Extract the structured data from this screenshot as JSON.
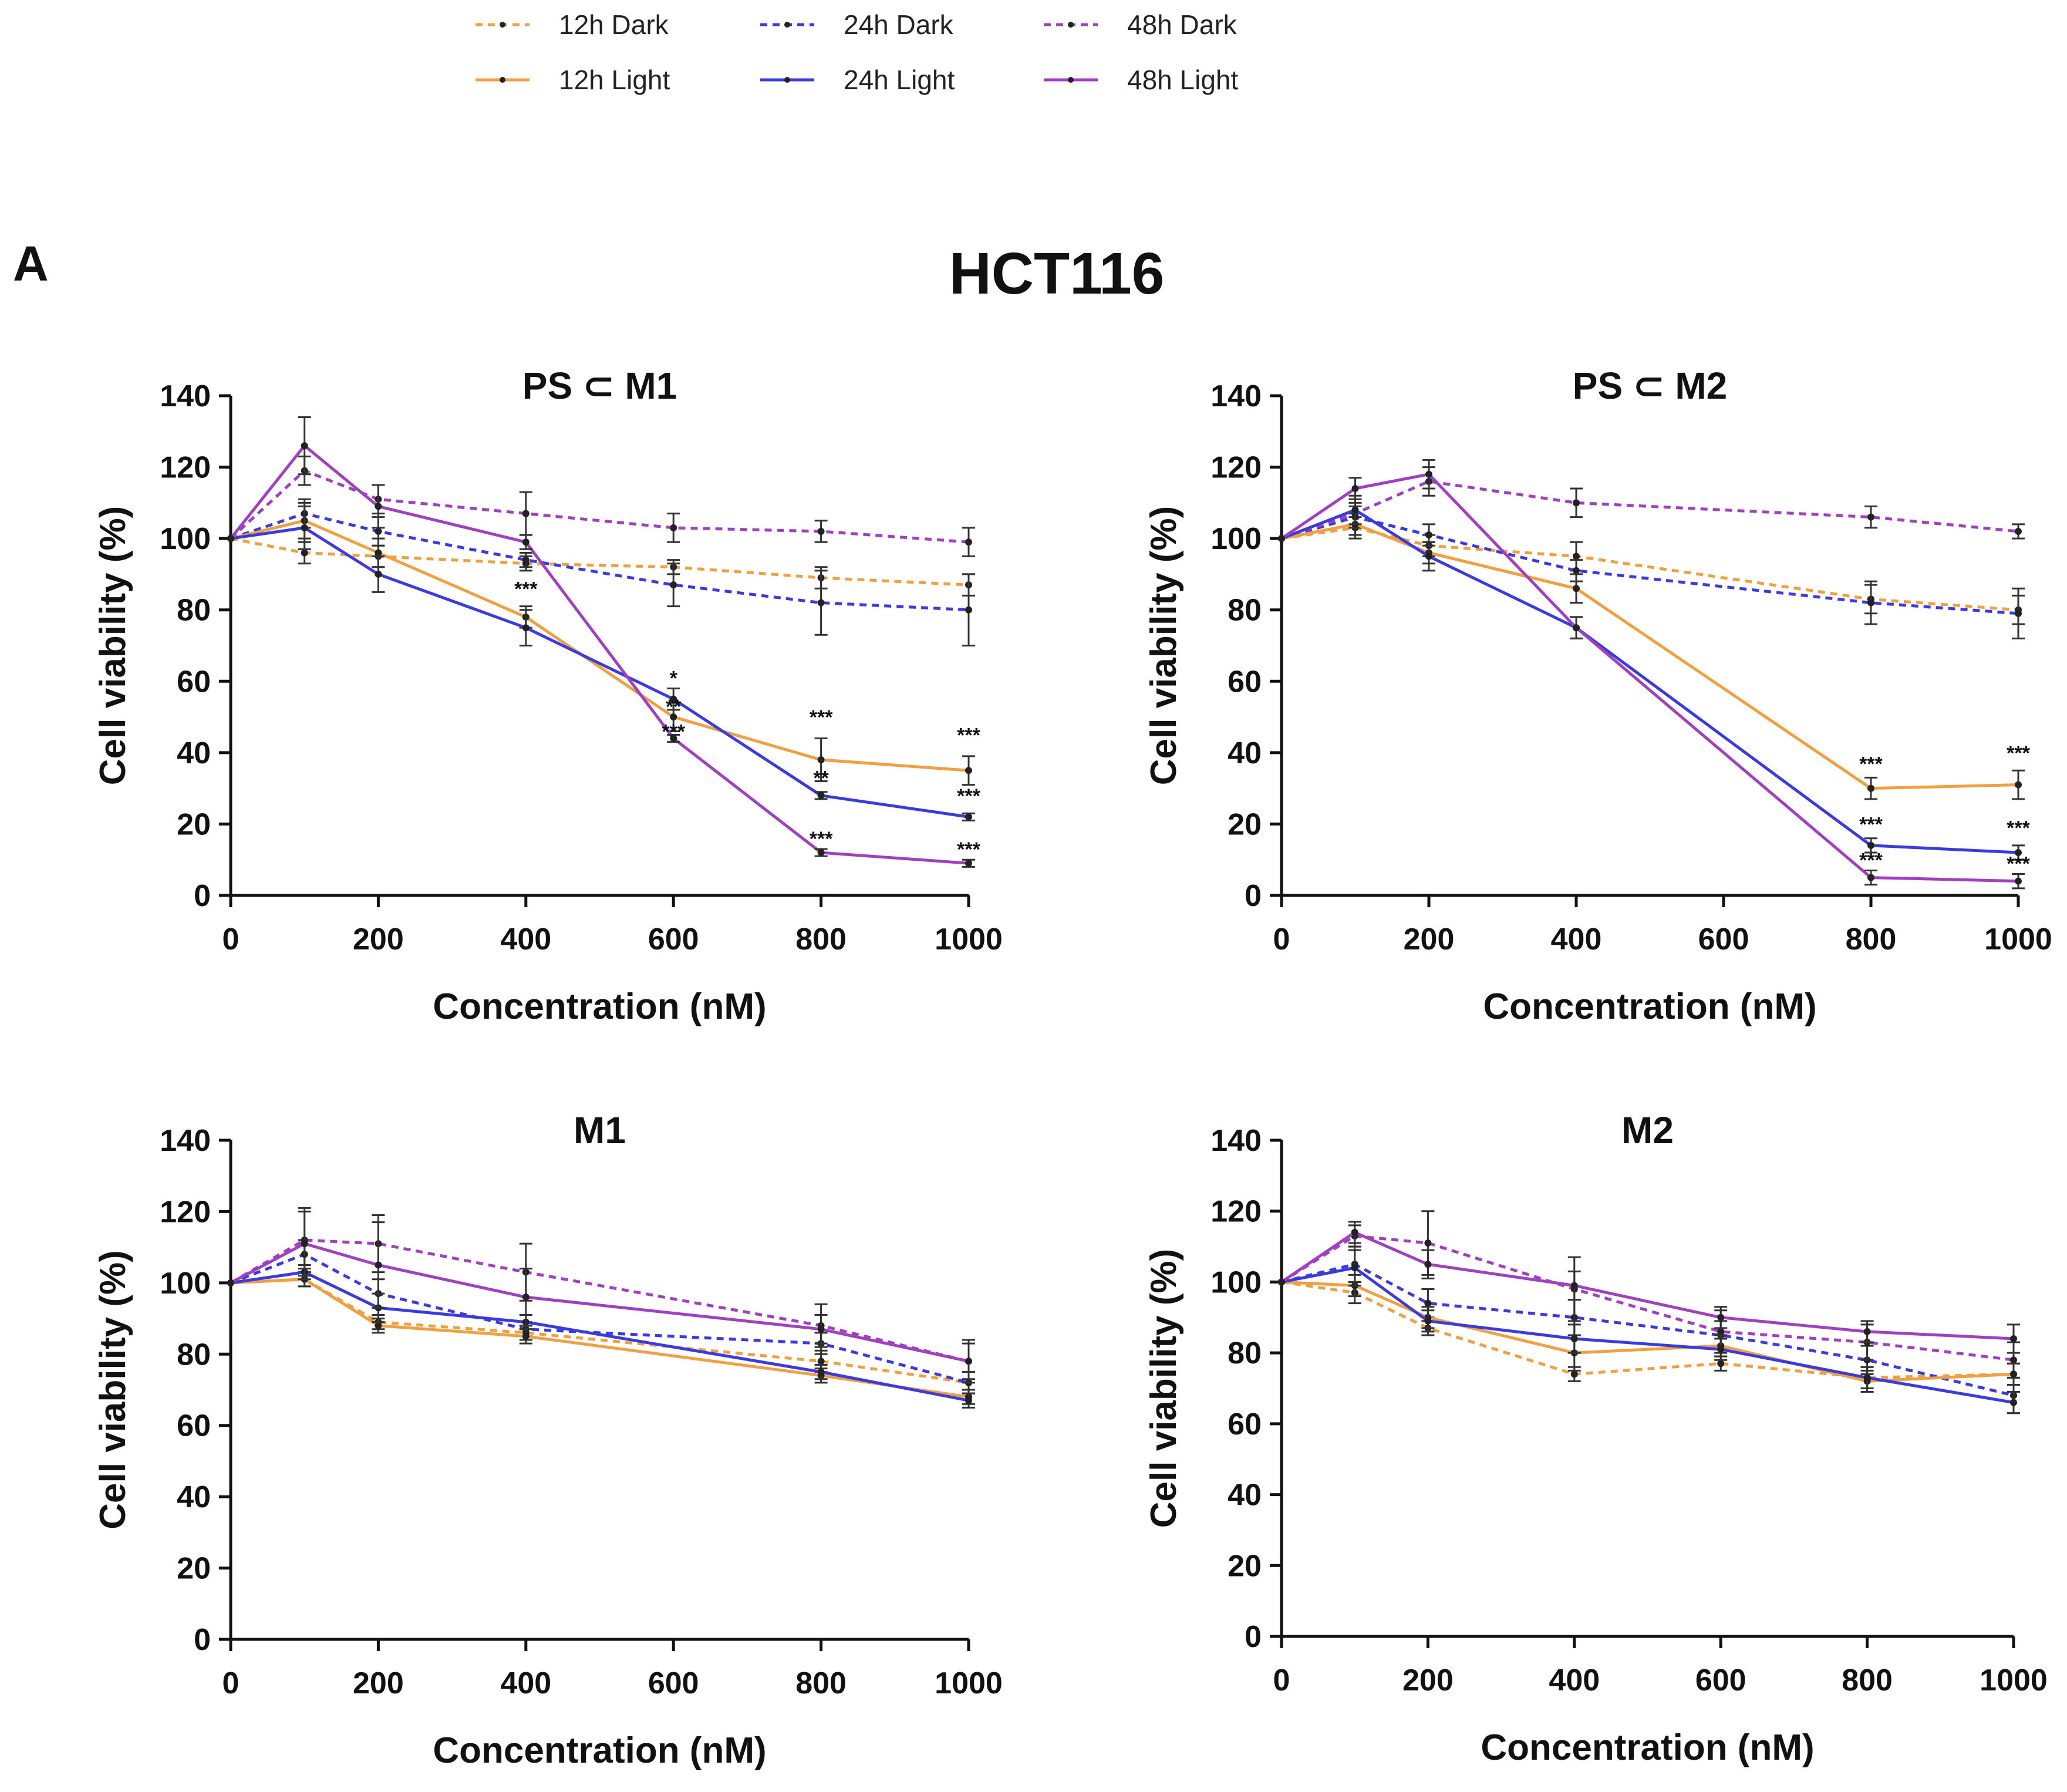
{
  "figure": {
    "panel_label": "A",
    "title": "HCT116"
  },
  "legend": [
    {
      "name": "12h Dark",
      "color": "#f0a040",
      "style": "dashed"
    },
    {
      "name": "24h Dark",
      "color": "#3a3ae0",
      "style": "dashed"
    },
    {
      "name": "48h Dark",
      "color": "#a040c0",
      "style": "dashed"
    },
    {
      "name": "12h Light",
      "color": "#f0a040",
      "style": "solid"
    },
    {
      "name": "24h Light",
      "color": "#3a3ae0",
      "style": "solid"
    },
    {
      "name": "48h Light",
      "color": "#a040c0",
      "style": "solid"
    }
  ],
  "chart_data": [
    {
      "type": "line",
      "title": "PS ⊂ M1",
      "xlabel": "Concentration (nM)",
      "ylabel": "Cell viability (%)",
      "xlim": [
        0,
        1000
      ],
      "ylim": [
        0,
        140
      ],
      "xticks": [
        0,
        200,
        400,
        600,
        800,
        1000
      ],
      "yticks": [
        0,
        20,
        40,
        60,
        80,
        100,
        120,
        140
      ],
      "x": [
        0,
        100,
        200,
        400,
        600,
        800,
        1000
      ],
      "series": [
        {
          "name": "12h Dark",
          "values": [
            100,
            96,
            95,
            93,
            92,
            89,
            87
          ],
          "err": [
            0,
            3,
            3,
            2,
            2,
            3,
            3
          ]
        },
        {
          "name": "24h Dark",
          "values": [
            100,
            107,
            102,
            94,
            87,
            82,
            80
          ],
          "err": [
            0,
            4,
            4,
            2,
            6,
            9,
            10
          ]
        },
        {
          "name": "48h Dark",
          "values": [
            100,
            119,
            111,
            107,
            103,
            102,
            99
          ],
          "err": [
            0,
            4,
            4,
            6,
            4,
            3,
            4
          ]
        },
        {
          "name": "12h Light",
          "values": [
            100,
            105,
            96,
            78,
            50,
            38,
            35
          ],
          "err": [
            0,
            5,
            4,
            3,
            4,
            6,
            4
          ]
        },
        {
          "name": "24h Light",
          "values": [
            100,
            103,
            90,
            75,
            55,
            28,
            22
          ],
          "err": [
            0,
            6,
            5,
            5,
            3,
            1,
            1
          ]
        },
        {
          "name": "48h Light",
          "values": [
            100,
            126,
            109,
            99,
            44,
            12,
            9
          ],
          "err": [
            0,
            8,
            6,
            2,
            1,
            1,
            1
          ]
        }
      ],
      "annotations": [
        {
          "x": 400,
          "y": 84,
          "text": "***"
        },
        {
          "x": 600,
          "y": 59,
          "text": "*"
        },
        {
          "x": 600,
          "y": 51,
          "text": "**"
        },
        {
          "x": 600,
          "y": 44,
          "text": "***"
        },
        {
          "x": 800,
          "y": 48,
          "text": "***"
        },
        {
          "x": 800,
          "y": 31,
          "text": "**"
        },
        {
          "x": 800,
          "y": 14,
          "text": "***"
        },
        {
          "x": 1000,
          "y": 43,
          "text": "***"
        },
        {
          "x": 1000,
          "y": 26,
          "text": "***"
        },
        {
          "x": 1000,
          "y": 11,
          "text": "***"
        }
      ]
    },
    {
      "type": "line",
      "title": "PS ⊂ M2",
      "xlabel": "Concentration (nM)",
      "ylabel": "Cell viability (%)",
      "xlim": [
        0,
        1000
      ],
      "ylim": [
        0,
        140
      ],
      "xticks": [
        0,
        200,
        400,
        600,
        800,
        1000
      ],
      "yticks": [
        0,
        20,
        40,
        60,
        80,
        100,
        120,
        140
      ],
      "x": [
        0,
        100,
        200,
        400,
        800,
        1000
      ],
      "series": [
        {
          "name": "12h Dark",
          "values": [
            100,
            103,
            98,
            95,
            83,
            80
          ],
          "err": [
            0,
            3,
            3,
            4,
            4,
            4
          ]
        },
        {
          "name": "24h Dark",
          "values": [
            100,
            106,
            101,
            91,
            82,
            79
          ],
          "err": [
            0,
            3,
            3,
            3,
            6,
            7
          ]
        },
        {
          "name": "48h Dark",
          "values": [
            100,
            107,
            116,
            110,
            106,
            102
          ],
          "err": [
            0,
            3,
            4,
            4,
            3,
            2
          ]
        },
        {
          "name": "12h Light",
          "values": [
            100,
            104,
            96,
            86,
            30,
            31
          ],
          "err": [
            0,
            3,
            3,
            4,
            3,
            4
          ]
        },
        {
          "name": "24h Light",
          "values": [
            100,
            108,
            95,
            75,
            14,
            12
          ],
          "err": [
            0,
            4,
            4,
            3,
            2,
            2
          ]
        },
        {
          "name": "48h Light",
          "values": [
            100,
            114,
            118,
            75,
            5,
            4
          ],
          "err": [
            0,
            3,
            4,
            3,
            2,
            2
          ]
        }
      ],
      "annotations": [
        {
          "x": 800,
          "y": 35,
          "text": "***"
        },
        {
          "x": 1000,
          "y": 38,
          "text": "***"
        },
        {
          "x": 800,
          "y": 18,
          "text": "***"
        },
        {
          "x": 1000,
          "y": 17,
          "text": "***"
        },
        {
          "x": 800,
          "y": 8,
          "text": "***"
        },
        {
          "x": 1000,
          "y": 7,
          "text": "***"
        }
      ]
    },
    {
      "type": "line",
      "title": "M1",
      "xlabel": "Concentration (nM)",
      "ylabel": "Cell viability (%)",
      "xlim": [
        0,
        1000
      ],
      "ylim": [
        0,
        140
      ],
      "xticks": [
        0,
        200,
        400,
        600,
        800,
        1000
      ],
      "yticks": [
        0,
        20,
        40,
        60,
        80,
        100,
        120,
        140
      ],
      "x": [
        0,
        100,
        200,
        400,
        800,
        1000
      ],
      "series": [
        {
          "name": "12h Dark",
          "values": [
            100,
            101,
            89,
            86,
            78,
            72
          ],
          "err": [
            0,
            2,
            2,
            2,
            3,
            3
          ]
        },
        {
          "name": "24h Dark",
          "values": [
            100,
            108,
            97,
            87,
            83,
            72
          ],
          "err": [
            0,
            4,
            4,
            2,
            3,
            3
          ]
        },
        {
          "name": "48h Dark",
          "values": [
            100,
            112,
            111,
            103,
            88,
            78
          ],
          "err": [
            0,
            9,
            8,
            8,
            6,
            6
          ]
        },
        {
          "name": "12h Light",
          "values": [
            100,
            101,
            88,
            85,
            74,
            68
          ],
          "err": [
            0,
            2,
            2,
            2,
            2,
            2
          ]
        },
        {
          "name": "24h Light",
          "values": [
            100,
            103,
            93,
            89,
            75,
            67
          ],
          "err": [
            0,
            2,
            4,
            2,
            2,
            2
          ]
        },
        {
          "name": "48h Light",
          "values": [
            100,
            111,
            105,
            96,
            87,
            78
          ],
          "err": [
            0,
            9,
            12,
            8,
            4,
            5
          ]
        }
      ]
    },
    {
      "type": "line",
      "title": "M2",
      "xlabel": "Concentration (nM)",
      "ylabel": "Cell viability (%)",
      "xlim": [
        0,
        1000
      ],
      "ylim": [
        0,
        140
      ],
      "xticks": [
        0,
        200,
        400,
        600,
        800,
        1000
      ],
      "yticks": [
        0,
        20,
        40,
        60,
        80,
        100,
        120,
        140
      ],
      "x": [
        0,
        100,
        200,
        400,
        600,
        800,
        1000
      ],
      "series": [
        {
          "name": "12h Dark",
          "values": [
            100,
            97,
            87,
            74,
            77,
            73,
            74
          ],
          "err": [
            0,
            3,
            2,
            2,
            2,
            3,
            3
          ]
        },
        {
          "name": "24h Dark",
          "values": [
            100,
            105,
            94,
            90,
            85,
            78,
            68
          ],
          "err": [
            0,
            5,
            4,
            5,
            4,
            4,
            5
          ]
        },
        {
          "name": "48h Dark",
          "values": [
            100,
            113,
            111,
            98,
            86,
            83,
            78
          ],
          "err": [
            0,
            3,
            9,
            9,
            6,
            5,
            5
          ]
        },
        {
          "name": "12h Light",
          "values": [
            100,
            99,
            90,
            80,
            82,
            72,
            74
          ],
          "err": [
            0,
            3,
            3,
            5,
            3,
            3,
            3
          ]
        },
        {
          "name": "24h Light",
          "values": [
            100,
            104,
            89,
            84,
            81,
            73,
            66
          ],
          "err": [
            0,
            5,
            3,
            4,
            3,
            3,
            3
          ]
        },
        {
          "name": "48h Light",
          "values": [
            100,
            114,
            105,
            99,
            90,
            86,
            84
          ],
          "err": [
            0,
            3,
            4,
            4,
            3,
            3,
            4
          ]
        }
      ]
    }
  ]
}
